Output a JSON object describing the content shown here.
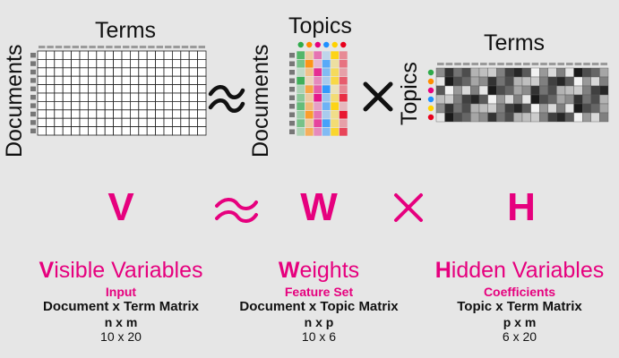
{
  "top": {
    "v_matrix": {
      "top_label": "Terms",
      "side_label": "Documents",
      "rows": 10,
      "cols": 20
    },
    "w_matrix": {
      "top_label": "Topics",
      "side_label": "Documents",
      "rows": 10,
      "cols": 6
    },
    "h_matrix": {
      "top_label": "Terms",
      "side_label": "Topics",
      "rows": 6,
      "cols": 20
    }
  },
  "topic_colors": [
    "#2eaa4a",
    "#ff8c00",
    "#e6007e",
    "#1e90ff",
    "#ffd200",
    "#e8001c"
  ],
  "equation": {
    "v": "V",
    "w": "W",
    "h": "H"
  },
  "columns": [
    {
      "initial": "V",
      "rest": "isible Variables",
      "subtitle": "Input",
      "description": "Document x Term Matrix",
      "dims": "n x m",
      "size": "10 x 20"
    },
    {
      "initial": "W",
      "rest": "eights",
      "subtitle": "Feature Set",
      "description": "Document x Topic Matrix",
      "dims": "n x p",
      "size": "10 x 6"
    },
    {
      "initial": "H",
      "rest": "idden Variables",
      "subtitle": "Coefficients",
      "description": "Topic x Term Matrix",
      "dims": "p x m",
      "size": "6 x 20"
    }
  ]
}
